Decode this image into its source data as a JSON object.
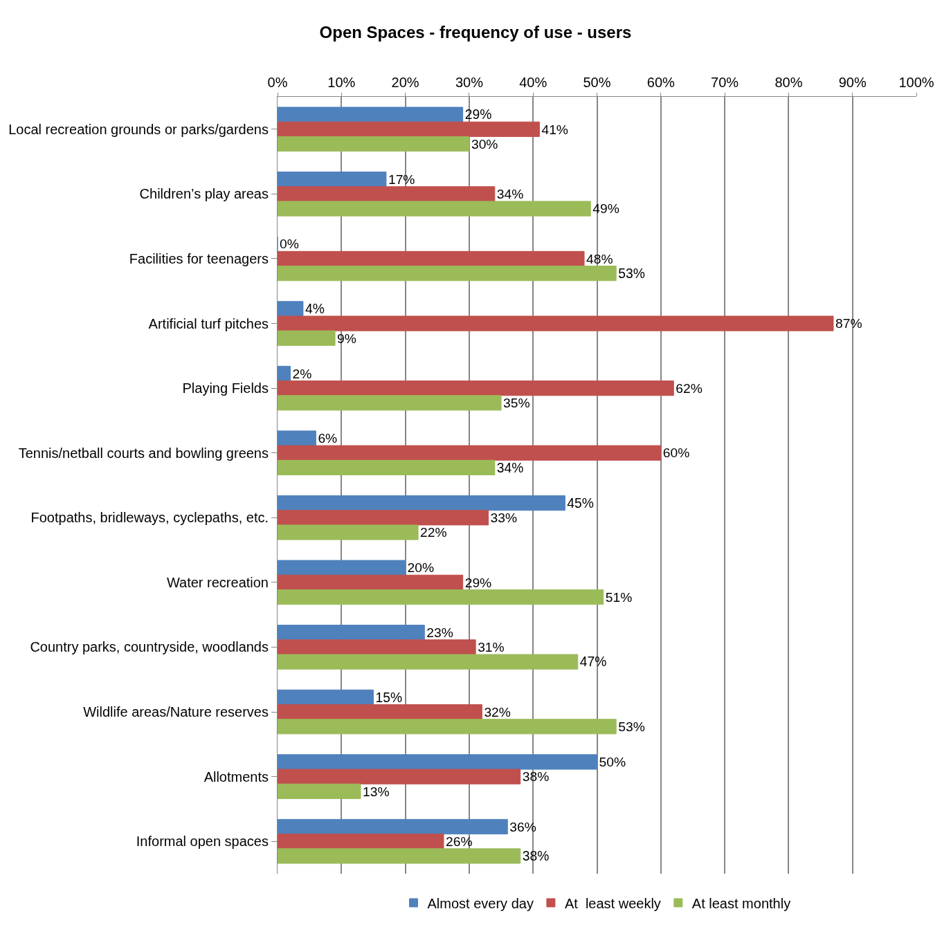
{
  "chart_data": {
    "type": "bar",
    "orientation": "horizontal",
    "title": "Open Spaces - frequency of use - users",
    "categories": [
      "Local recreation grounds or parks/gardens",
      "Children’s play areas",
      "Facilities for teenagers",
      "Artificial turf pitches",
      "Playing Fields",
      "Tennis/netball courts and bowling greens",
      "Footpaths, bridleways, cyclepaths, etc.",
      "Water recreation",
      "Country parks, countryside, woodlands",
      "Wildlife areas/Nature reserves",
      "Allotments",
      "Informal open spaces"
    ],
    "series": [
      {
        "name": "Almost every day",
        "color": "#4f81bd",
        "values": [
          29,
          17,
          0,
          4,
          2,
          6,
          45,
          20,
          23,
          15,
          50,
          36
        ],
        "value_labels": [
          "29%",
          "17%",
          "0%",
          "4%",
          "2%",
          "6%",
          "45%",
          "20%",
          "23%",
          "15%",
          "50%",
          "36%"
        ]
      },
      {
        "name": "At  least weekly",
        "color": "#c0504d",
        "values": [
          41,
          34,
          48,
          87,
          62,
          60,
          33,
          29,
          31,
          32,
          38,
          26
        ],
        "value_labels": [
          "41%",
          "34%",
          "48%",
          "87%",
          "62%",
          "60%",
          "33%",
          "29%",
          "31%",
          "32%",
          "38%",
          "26%"
        ]
      },
      {
        "name": "At least monthly",
        "color": "#9bbb59",
        "values": [
          30,
          49,
          53,
          9,
          35,
          34,
          22,
          51,
          47,
          53,
          13,
          38
        ],
        "value_labels": [
          "30%",
          "49%",
          "53%",
          "9%",
          "35%",
          "34%",
          "22%",
          "51%",
          "47%",
          "53%",
          "13%",
          "38%"
        ]
      }
    ],
    "xlim": [
      0,
      100
    ],
    "xticks": [
      {
        "value": 0,
        "label": "0%"
      },
      {
        "value": 10,
        "label": "10%"
      },
      {
        "value": 20,
        "label": "20%"
      },
      {
        "value": 30,
        "label": "30%"
      },
      {
        "value": 40,
        "label": "40%"
      },
      {
        "value": 50,
        "label": "50%"
      },
      {
        "value": 60,
        "label": "60%"
      },
      {
        "value": 70,
        "label": "70%"
      },
      {
        "value": 80,
        "label": "80%"
      },
      {
        "value": 90,
        "label": "90%"
      },
      {
        "value": 100,
        "label": "100%"
      }
    ],
    "grid": "x",
    "legend": "bottom"
  }
}
